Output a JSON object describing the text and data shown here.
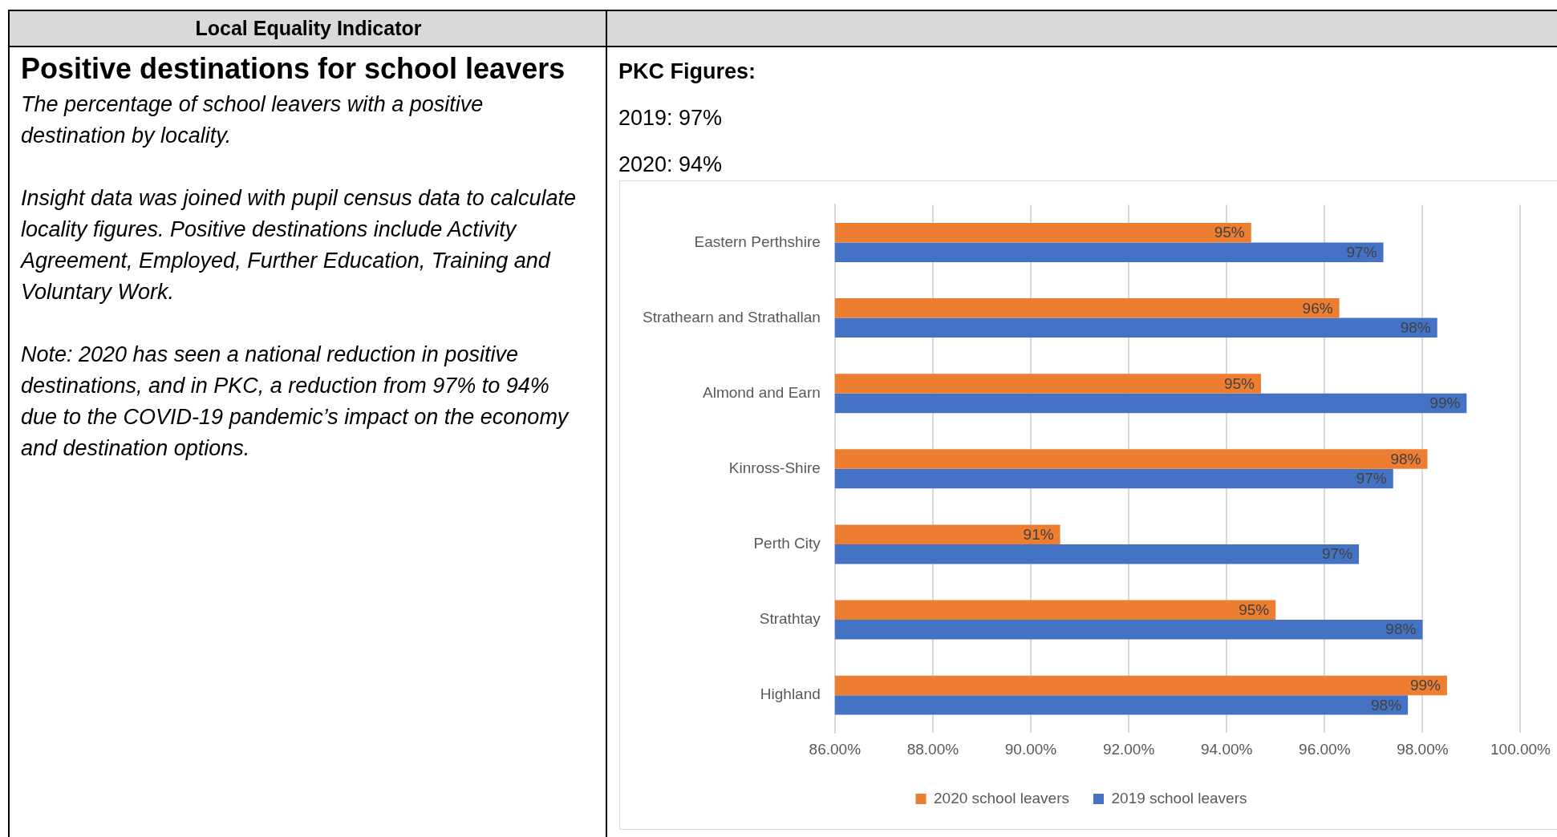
{
  "chart_data": {
    "type": "bar",
    "orientation": "horizontal",
    "title": "Positive destinations for school leavers",
    "subtitle": "The percentage of school leavers with a positive destination by locality.",
    "annotations": [
      "Local Equality Indicator",
      "Insight data was joined with pupil census data to calculate locality figures.  Positive destinations include Activity Agreement, Employed, Further Education, Training and Voluntary Work.",
      "Note: 2020 has seen a national reduction in positive destinations, and in PKC, a reduction from 97% to 94% due to the COVID-19 pandemic’s impact on the economy and destination options.",
      "PKC Figures:",
      "2019: 97%",
      "2020: 94%"
    ],
    "categories": [
      "Eastern Perthshire",
      "Strathearn and Strathallan",
      "Almond and Earn",
      "Kinross-Shire",
      "Perth City",
      "Strathtay",
      "Highland"
    ],
    "series": [
      {
        "name": "2020 school leavers",
        "color": "#ed7d31",
        "values": [
          94.5,
          96.3,
          94.7,
          98.1,
          90.6,
          95.0,
          98.5
        ],
        "value_labels": [
          "95%",
          "96%",
          "95%",
          "98%",
          "91%",
          "95%",
          "99%"
        ]
      },
      {
        "name": "2019 school leavers",
        "color": "#4472c4",
        "values": [
          97.2,
          98.3,
          98.9,
          97.4,
          96.7,
          98.0,
          97.7
        ],
        "value_labels": [
          "97%",
          "98%",
          "99%",
          "97%",
          "97%",
          "98%",
          "98%"
        ]
      }
    ],
    "xlim": [
      86,
      100
    ],
    "xticks": [
      {
        "value": 86,
        "label": "86.00%"
      },
      {
        "value": 88,
        "label": "88.00%"
      },
      {
        "value": 90,
        "label": "90.00%"
      },
      {
        "value": 92,
        "label": "92.00%"
      },
      {
        "value": 94,
        "label": "94.00%"
      },
      {
        "value": 96,
        "label": "96.00%"
      },
      {
        "value": 98,
        "label": "98.00%"
      },
      {
        "value": 100,
        "label": "100.00%"
      }
    ],
    "grid": "x",
    "legend": "bottom"
  }
}
